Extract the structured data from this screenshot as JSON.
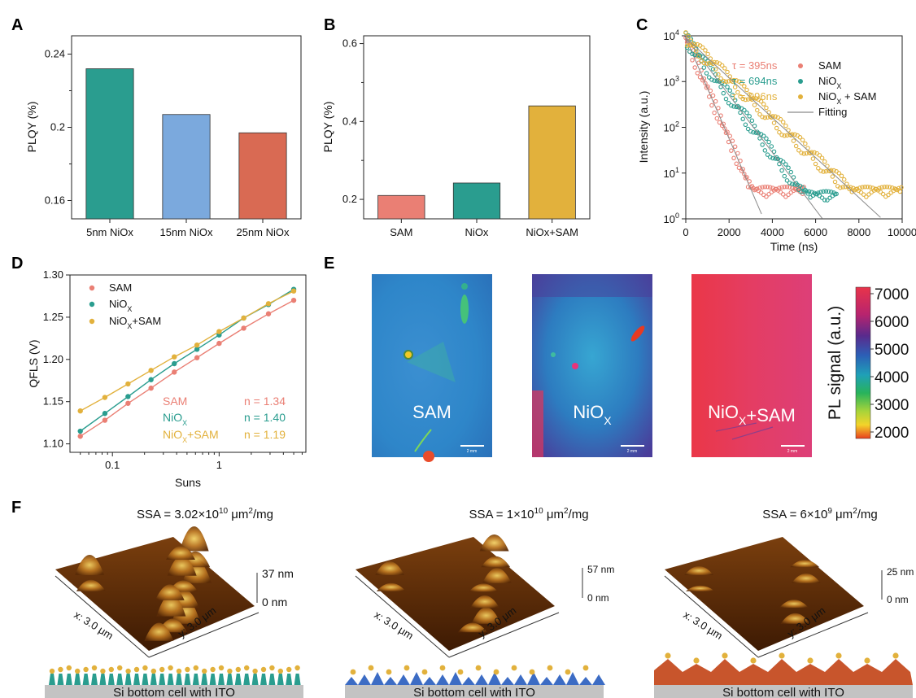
{
  "panels": {
    "A": "A",
    "B": "B",
    "C": "C",
    "D": "D",
    "E": "E",
    "F": "F"
  },
  "colors": {
    "teal": "#2a9d8f",
    "blue": "#7ba9dd",
    "orange": "#d96a53",
    "salmon": "#ea7f74",
    "yellow": "#e2b13c",
    "grayfit": "#8a8a8a"
  },
  "chart_data": [
    {
      "id": "A",
      "type": "bar",
      "categories": [
        "5nm NiOx",
        "15nm NiOx",
        "25nm NiOx"
      ],
      "values": [
        0.232,
        0.207,
        0.197
      ],
      "ylabel": "PLQY (%)",
      "ylim": [
        0.15,
        0.25
      ],
      "yticks": [
        0.16,
        0.2,
        0.24
      ],
      "ytick_labels": [
        "0.16",
        "0.2",
        "0.24"
      ],
      "bar_colors": [
        "#2a9d8f",
        "#7ba9dd",
        "#d96a53"
      ]
    },
    {
      "id": "B",
      "type": "bar",
      "categories": [
        "SAM",
        "NiOx",
        "NiOx+SAM"
      ],
      "values": [
        0.21,
        0.242,
        0.44
      ],
      "ylabel": "PLQY (%)",
      "ylim": [
        0.15,
        0.62
      ],
      "yticks": [
        0.2,
        0.4,
        0.6
      ],
      "ytick_labels": [
        "0.2",
        "0.4",
        "0.6"
      ],
      "bar_colors": [
        "#ea7f74",
        "#2a9d8f",
        "#e2b13c"
      ]
    },
    {
      "id": "C",
      "type": "scatter",
      "xlabel": "Time (ns)",
      "ylabel": "Intensity (a.u.)",
      "xlim": [
        0,
        10000
      ],
      "ylim": [
        1,
        10000
      ],
      "yscale": "log",
      "xticks": [
        0,
        2000,
        4000,
        6000,
        8000,
        10000
      ],
      "xtick_labels": [
        "0",
        "2000",
        "4000",
        "6000",
        "8000",
        "10000"
      ],
      "yticks": [
        1,
        10,
        100,
        1000,
        10000
      ],
      "ytick_base": "10",
      "ytick_exps": [
        "0",
        "1",
        "2",
        "3",
        "4"
      ],
      "series": [
        {
          "name": "SAM",
          "tau": 395,
          "tau_label": "τ = 395ns",
          "color": "#ea7f74"
        },
        {
          "name": "NiO",
          "sub": "X",
          "tau": 694,
          "tau_label": "τ = 694ns",
          "color": "#2a9d8f"
        },
        {
          "name": "NiO",
          "sub": "X",
          "suffix": " + SAM",
          "tau": 996,
          "tau_label": "τ = 996ns",
          "color": "#e2b13c"
        }
      ],
      "fit_label": "Fitting",
      "legend": "top-right"
    },
    {
      "id": "D",
      "type": "line",
      "xlabel": "Suns",
      "ylabel": "QFLS (V)",
      "xscale": "log",
      "xlim": [
        0.04,
        6.5
      ],
      "ylim": [
        1.09,
        1.3
      ],
      "xticks": [
        0.1,
        1
      ],
      "xtick_labels": [
        "0.1",
        "1"
      ],
      "yticks": [
        1.1,
        1.15,
        1.2,
        1.25,
        1.3
      ],
      "ytick_labels": [
        "1.10",
        "1.15",
        "1.20",
        "1.25",
        "1.30"
      ],
      "x": [
        0.05,
        0.085,
        0.14,
        0.23,
        0.38,
        0.62,
        1.0,
        1.7,
        2.9,
        5.0
      ],
      "series": [
        {
          "name": "SAM",
          "sub": "",
          "color": "#ea7f74",
          "values": [
            1.109,
            1.128,
            1.148,
            1.166,
            1.185,
            1.202,
            1.219,
            1.237,
            1.254,
            1.27
          ],
          "n_label": "n = 1.34"
        },
        {
          "name": "NiO",
          "sub": "X",
          "color": "#2a9d8f",
          "values": [
            1.115,
            1.136,
            1.156,
            1.176,
            1.195,
            1.212,
            1.229,
            1.249,
            1.265,
            1.283
          ],
          "n_label": "n = 1.40"
        },
        {
          "name": "NiO",
          "sub": "X",
          "suffix": "+SAM",
          "color": "#e2b13c",
          "values": [
            1.139,
            1.155,
            1.171,
            1.187,
            1.203,
            1.217,
            1.233,
            1.249,
            1.266,
            1.281
          ],
          "n_label": "n = 1.19"
        }
      ],
      "legend": "top-left"
    }
  ],
  "E": {
    "images": [
      {
        "name": "SAM",
        "sub": "",
        "suffix": ""
      },
      {
        "name": "NiO",
        "sub": "X",
        "suffix": ""
      },
      {
        "name": "NiO",
        "sub": "X",
        "suffix": "+SAM"
      }
    ],
    "scalebar": "2 mm",
    "colorbar": {
      "label": "PL signal (a.u.)",
      "ticks": [
        "7000",
        "6000",
        "5000",
        "4000",
        "3000",
        "2000"
      ]
    }
  },
  "F": {
    "items": [
      {
        "ssa_base": "SSA = 3.02×10",
        "ssa_exp": "10",
        "ssa_unit": " μm",
        "ssa_unit_exp": "2",
        "ssa_tail": "/mg",
        "zmax": "37 nm",
        "zmin": "0 nm"
      },
      {
        "ssa_base": "SSA = 1×10",
        "ssa_exp": "10",
        "ssa_unit": " μm",
        "ssa_unit_exp": "2",
        "ssa_tail": "/mg",
        "zmax": "57 nm",
        "zmin": "0 nm"
      },
      {
        "ssa_base": "SSA = 6×10",
        "ssa_exp": "9",
        "ssa_unit": " μm",
        "ssa_unit_exp": "2",
        "ssa_tail": "/mg",
        "zmax": "25 nm",
        "zmin": "0 nm"
      }
    ],
    "xaxis": "x: 3.0 μm",
    "yaxis": "y: 3.0 μm",
    "substrate": "Si bottom cell with ITO"
  }
}
